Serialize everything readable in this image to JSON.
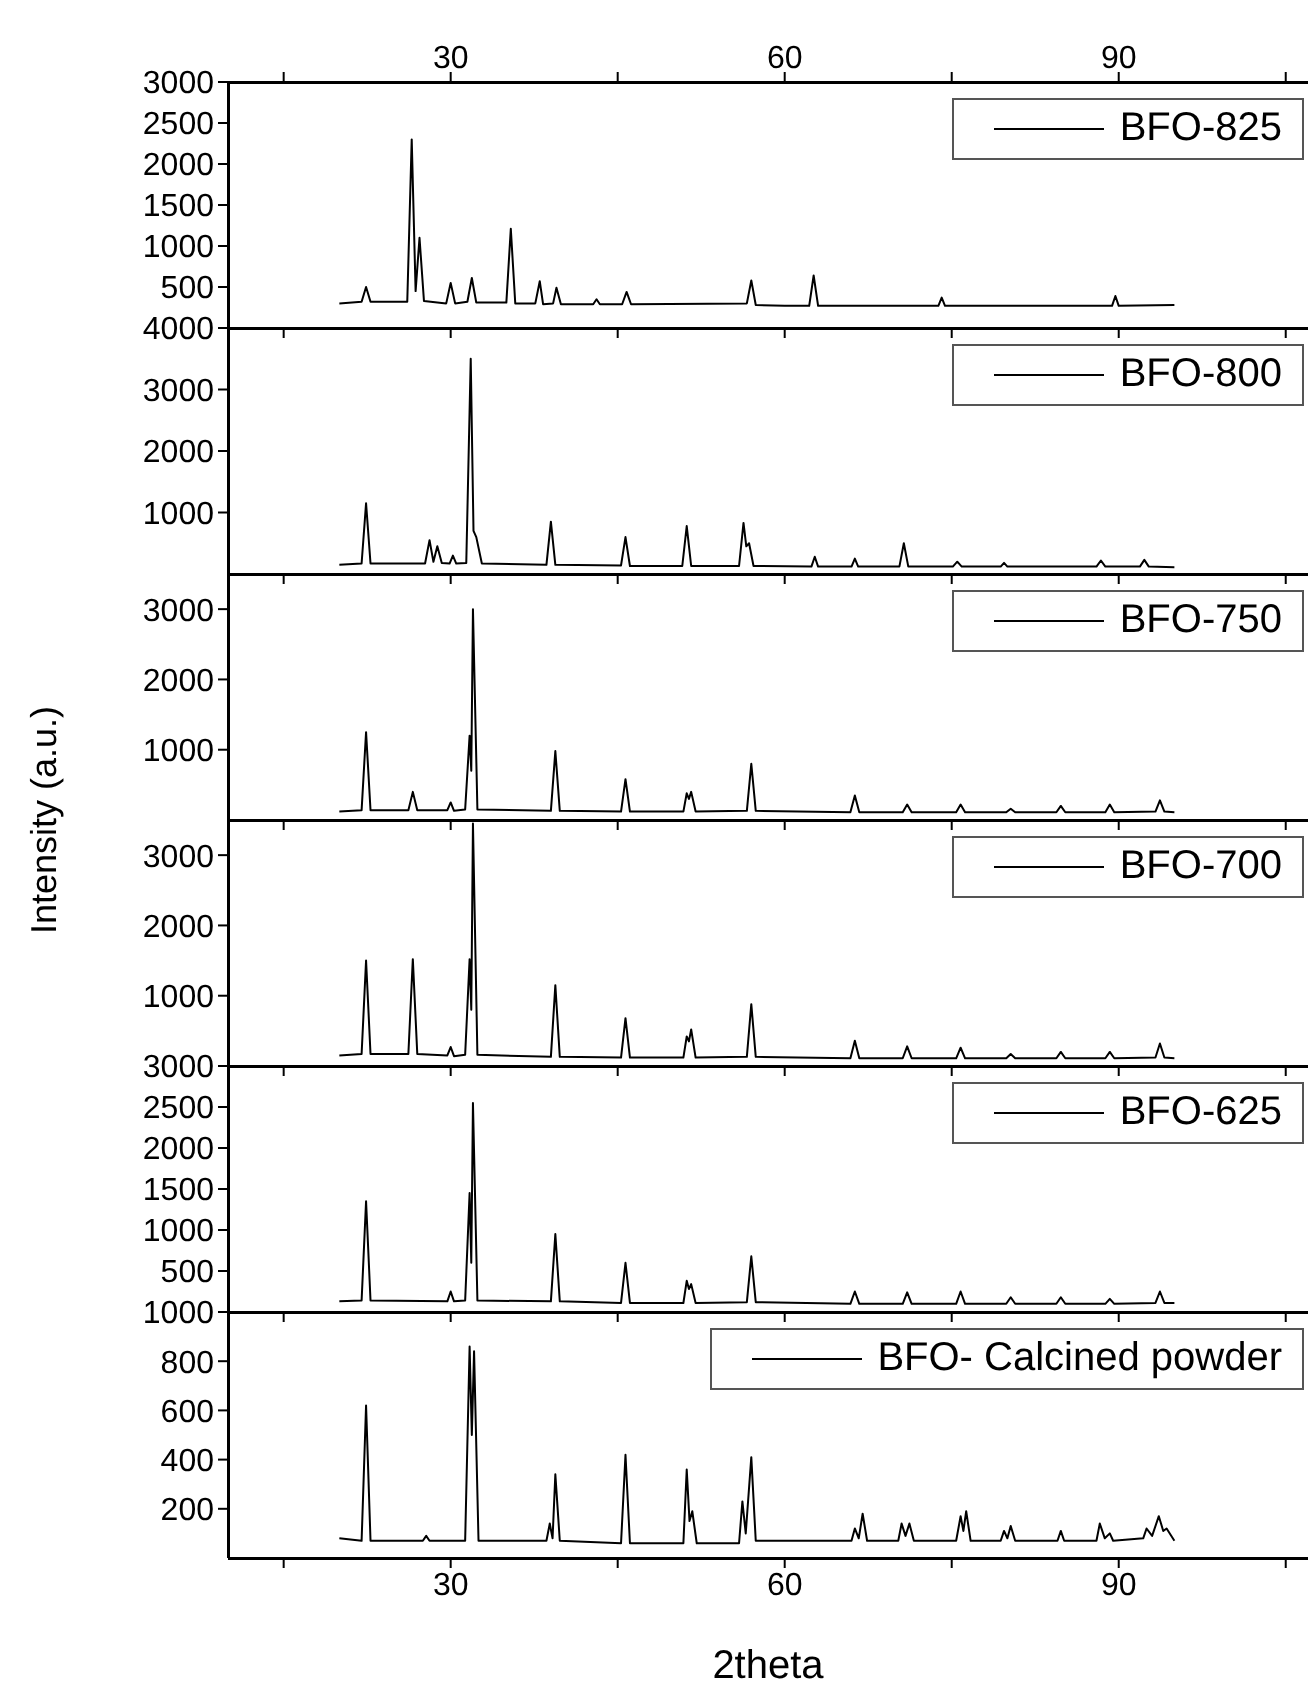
{
  "chart_data": [
    {
      "type": "line",
      "xlim": [
        10,
        107
      ],
      "xticks": [
        {
          "value": 15,
          "label": null
        },
        {
          "value": 30,
          "label": null
        },
        {
          "value": 45,
          "label": null
        },
        {
          "value": 60,
          "label": null
        },
        {
          "value": 75,
          "label": null
        },
        {
          "value": 90,
          "label": null
        },
        {
          "value": 105,
          "label": null
        }
      ],
      "x2lim": [
        10,
        107
      ],
      "x2ticks": [
        {
          "value": 15,
          "label": null
        },
        30,
        {
          "value": 45,
          "label": null
        },
        60,
        {
          "value": 75,
          "label": null
        },
        90,
        {
          "value": 105,
          "label": null
        }
      ],
      "ylim": [
        0,
        3000
      ],
      "yticks": [
        500,
        1000,
        1500,
        2000,
        2500,
        3000
      ],
      "tick_labels": "y",
      "legend": "top right",
      "x": [
        20,
        22.0,
        22.4,
        22.8,
        26.1,
        26.5,
        26.85,
        27.2,
        27.6,
        29.6,
        30,
        30.4,
        31.5,
        31.9,
        32.3,
        35.0,
        35.4,
        35.8,
        37.6,
        38,
        38.3,
        39.2,
        39.5,
        39.9,
        42.8,
        43.1,
        43.4,
        45.4,
        45.8,
        46.2,
        56.6,
        57,
        57.4,
        60,
        62.2,
        62.6,
        63,
        73.8,
        74.1,
        74.4,
        89.4,
        89.7,
        90,
        95
      ],
      "series": [
        {
          "name": "BFO-825",
          "color": "#000000",
          "values": [
            300,
            320,
            500,
            320,
            320,
            2300,
            450,
            1100,
            330,
            300,
            550,
            300,
            320,
            610,
            310,
            310,
            1210,
            300,
            300,
            570,
            290,
            300,
            490,
            290,
            290,
            350,
            290,
            290,
            440,
            290,
            300,
            580,
            280,
            270,
            270,
            640,
            270,
            270,
            370,
            270,
            270,
            390,
            270,
            280
          ]
        }
      ]
    },
    {
      "type": "line",
      "xlim": [
        10,
        107
      ],
      "xticks": [
        {
          "value": 15,
          "label": null
        },
        {
          "value": 30,
          "label": null
        },
        {
          "value": 45,
          "label": null
        },
        {
          "value": 60,
          "label": null
        },
        {
          "value": 75,
          "label": null
        },
        {
          "value": 90,
          "label": null
        },
        {
          "value": 105,
          "label": null
        }
      ],
      "ylim": [
        0,
        4000
      ],
      "yticks": [
        1000,
        2000,
        3000,
        4000
      ],
      "tick_labels": "y",
      "legend": "top right",
      "x": [
        20,
        22.0,
        22.4,
        22.8,
        27.7,
        28.1,
        28.45,
        28.8,
        29.2,
        29.9,
        30.2,
        30.5,
        31.4,
        31.8,
        32.05,
        32.3,
        32.8,
        38.6,
        39.0,
        39.4,
        45.3,
        45.7,
        46.1,
        50.8,
        51.2,
        51.6,
        55.9,
        56.3,
        56.55,
        56.8,
        57.2,
        62.4,
        62.7,
        63.0,
        66.0,
        66.3,
        66.6,
        70.3,
        70.7,
        71.1,
        75.1,
        75.5,
        75.9,
        79.4,
        79.7,
        80.0,
        88.0,
        88.4,
        88.8,
        91.9,
        92.3,
        92.7,
        95
      ],
      "series": [
        {
          "name": "BFO-800",
          "color": "#000000",
          "values": [
            150,
            170,
            1150,
            170,
            170,
            550,
            200,
            450,
            180,
            170,
            300,
            170,
            180,
            3500,
            700,
            600,
            170,
            150,
            850,
            150,
            140,
            600,
            130,
            130,
            780,
            130,
            130,
            830,
            450,
            500,
            130,
            120,
            280,
            120,
            120,
            250,
            120,
            120,
            500,
            120,
            120,
            200,
            120,
            120,
            180,
            120,
            120,
            220,
            120,
            120,
            230,
            120,
            110
          ]
        }
      ]
    },
    {
      "type": "line",
      "xlim": [
        10,
        107
      ],
      "xticks": [
        {
          "value": 15,
          "label": null
        },
        {
          "value": 30,
          "label": null
        },
        {
          "value": 45,
          "label": null
        },
        {
          "value": 60,
          "label": null
        },
        {
          "value": 75,
          "label": null
        },
        {
          "value": 90,
          "label": null
        },
        {
          "value": 105,
          "label": null
        }
      ],
      "ylim": [
        0,
        3500
      ],
      "yticks": [
        1000,
        2000,
        3000
      ],
      "tick_labels": "y",
      "legend": "top right",
      "ylabel": "Intensity (a.u.)",
      "x": [
        20,
        22.0,
        22.4,
        22.8,
        26.2,
        26.6,
        27.0,
        29.7,
        30,
        30.3,
        31.3,
        31.7,
        31.85,
        32.0,
        32.4,
        39.0,
        39.4,
        39.8,
        45.3,
        45.7,
        46.1,
        50.9,
        51.2,
        51.4,
        51.6,
        52.0,
        56.6,
        57,
        57.4,
        65.9,
        66.3,
        66.7,
        70.6,
        71,
        71.4,
        75.4,
        75.8,
        76.2,
        79.9,
        80.3,
        80.7,
        84.4,
        84.8,
        85.2,
        88.8,
        89.2,
        89.6,
        93.3,
        93.7,
        94.1,
        95
      ],
      "series": [
        {
          "name": "BFO-750",
          "color": "#000000",
          "values": [
            120,
            140,
            1250,
            140,
            140,
            400,
            140,
            140,
            250,
            130,
            150,
            1200,
            700,
            3000,
            150,
            130,
            980,
            130,
            120,
            580,
            120,
            120,
            380,
            300,
            400,
            120,
            130,
            800,
            130,
            110,
            350,
            110,
            110,
            220,
            110,
            110,
            220,
            110,
            110,
            160,
            110,
            110,
            200,
            110,
            110,
            220,
            110,
            120,
            280,
            120,
            110
          ]
        }
      ]
    },
    {
      "type": "line",
      "xlim": [
        10,
        107
      ],
      "xticks": [
        {
          "value": 15,
          "label": null
        },
        {
          "value": 30,
          "label": null
        },
        {
          "value": 45,
          "label": null
        },
        {
          "value": 60,
          "label": null
        },
        {
          "value": 75,
          "label": null
        },
        {
          "value": 90,
          "label": null
        },
        {
          "value": 105,
          "label": null
        }
      ],
      "ylim": [
        0,
        3500
      ],
      "yticks": [
        1000,
        2000,
        3000
      ],
      "tick_labels": "y",
      "legend": "top right",
      "x": [
        20,
        22.0,
        22.4,
        22.8,
        26.2,
        26.6,
        27.0,
        29.7,
        30,
        30.3,
        31.3,
        31.7,
        31.85,
        32.0,
        32.4,
        39.0,
        39.4,
        39.8,
        45.3,
        45.7,
        46.1,
        50.9,
        51.2,
        51.4,
        51.6,
        52.0,
        56.6,
        57,
        57.4,
        65.9,
        66.3,
        66.7,
        70.6,
        71,
        71.4,
        75.4,
        75.8,
        76.2,
        79.9,
        80.3,
        80.7,
        84.4,
        84.8,
        85.2,
        88.8,
        89.2,
        89.6,
        93.3,
        93.7,
        94.1,
        95
      ],
      "series": [
        {
          "name": "BFO-700",
          "color": "#000000",
          "values": [
            150,
            170,
            1500,
            170,
            170,
            1520,
            170,
            150,
            270,
            140,
            160,
            1520,
            800,
            3450,
            160,
            130,
            1150,
            130,
            120,
            680,
            120,
            120,
            420,
            350,
            520,
            120,
            130,
            880,
            130,
            110,
            360,
            110,
            110,
            280,
            110,
            110,
            260,
            110,
            110,
            170,
            110,
            110,
            200,
            110,
            110,
            200,
            110,
            120,
            320,
            120,
            110
          ]
        }
      ]
    },
    {
      "type": "line",
      "xlim": [
        10,
        107
      ],
      "xticks": [
        {
          "value": 15,
          "label": null
        },
        {
          "value": 30,
          "label": null
        },
        {
          "value": 45,
          "label": null
        },
        {
          "value": 60,
          "label": null
        },
        {
          "value": 75,
          "label": null
        },
        {
          "value": 90,
          "label": null
        },
        {
          "value": 105,
          "label": null
        }
      ],
      "ylim": [
        0,
        3000
      ],
      "yticks": [
        500,
        1000,
        1500,
        2000,
        2500,
        3000
      ],
      "tick_labels": "y",
      "legend": "top right",
      "x": [
        20,
        22.0,
        22.4,
        22.8,
        29.7,
        30,
        30.3,
        31.3,
        31.7,
        31.85,
        32.0,
        32.4,
        39.0,
        39.4,
        39.8,
        45.3,
        45.7,
        46.1,
        50.9,
        51.2,
        51.4,
        51.6,
        52.0,
        56.6,
        57,
        57.4,
        65.9,
        66.3,
        66.7,
        70.6,
        71,
        71.4,
        75.4,
        75.8,
        76.2,
        79.9,
        80.3,
        80.7,
        84.4,
        84.8,
        85.2,
        88.8,
        89.2,
        89.6,
        93.3,
        93.7,
        94.1,
        95
      ],
      "series": [
        {
          "name": "BFO-625",
          "color": "#000000",
          "values": [
            130,
            140,
            1350,
            140,
            130,
            250,
            130,
            140,
            1450,
            600,
            2550,
            140,
            130,
            950,
            130,
            110,
            600,
            110,
            110,
            380,
            280,
            340,
            110,
            120,
            680,
            120,
            100,
            250,
            100,
            100,
            240,
            100,
            100,
            250,
            100,
            100,
            180,
            100,
            100,
            180,
            100,
            100,
            160,
            100,
            110,
            250,
            110,
            110
          ]
        }
      ]
    },
    {
      "type": "line",
      "xlim": [
        10,
        107
      ],
      "xticks": [
        {
          "value": 15,
          "label": null
        },
        30,
        {
          "value": 45,
          "label": null
        },
        60,
        {
          "value": 75,
          "label": null
        },
        90,
        {
          "value": 105,
          "label": null
        }
      ],
      "ylim": [
        0,
        1000
      ],
      "yticks": [
        200,
        400,
        600,
        800,
        1000
      ],
      "legend": "top right",
      "xlabel": "2theta",
      "x": [
        20,
        22.0,
        22.4,
        22.8,
        27.5,
        27.8,
        28.1,
        31.3,
        31.7,
        31.9,
        32.1,
        32.5,
        38.6,
        38.9,
        39.15,
        39.4,
        39.8,
        45.3,
        45.7,
        46.1,
        50.9,
        51.2,
        51.45,
        51.7,
        52.1,
        55.9,
        56.2,
        56.5,
        57.0,
        57.4,
        66.0,
        66.3,
        66.65,
        67.0,
        67.4,
        70.2,
        70.5,
        70.85,
        71.2,
        71.6,
        75.4,
        75.8,
        76.05,
        76.3,
        76.7,
        79.4,
        79.7,
        80.0,
        80.3,
        80.7,
        84.5,
        84.8,
        85.1,
        88.0,
        88.3,
        88.75,
        89.2,
        89.5,
        92.2,
        92.5,
        93.0,
        93.6,
        94.0,
        94.3,
        95
      ],
      "series": [
        {
          "name": "BFO- Calcined powder",
          "color": "#000000",
          "values": [
            80,
            70,
            620,
            70,
            70,
            90,
            70,
            70,
            860,
            500,
            840,
            70,
            70,
            140,
            80,
            340,
            70,
            60,
            420,
            60,
            60,
            360,
            150,
            190,
            60,
            60,
            230,
            100,
            410,
            70,
            70,
            120,
            80,
            180,
            70,
            70,
            140,
            90,
            140,
            70,
            70,
            170,
            110,
            190,
            70,
            70,
            110,
            80,
            130,
            70,
            70,
            110,
            70,
            70,
            140,
            80,
            100,
            70,
            80,
            120,
            90,
            170,
            110,
            120,
            70
          ]
        }
      ]
    }
  ]
}
